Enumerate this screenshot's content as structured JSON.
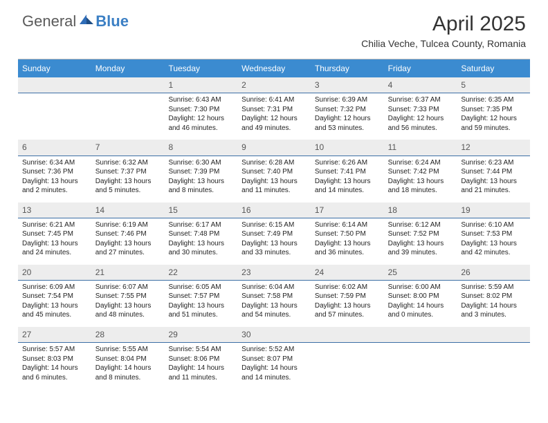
{
  "logo": {
    "general": "General",
    "blue": "Blue"
  },
  "title": "April 2025",
  "subtitle": "Chilia Veche, Tulcea County, Romania",
  "colors": {
    "header_bg": "#3b8bd0",
    "header_text": "#ffffff",
    "daynum_bg": "#ededed",
    "daynum_border": "#3b6ea5",
    "brand_blue": "#3b7fc4"
  },
  "days": [
    "Sunday",
    "Monday",
    "Tuesday",
    "Wednesday",
    "Thursday",
    "Friday",
    "Saturday"
  ],
  "weeks": [
    [
      null,
      null,
      {
        "n": "1",
        "sr": "Sunrise: 6:43 AM",
        "ss": "Sunset: 7:30 PM",
        "dl": "Daylight: 12 hours and 46 minutes."
      },
      {
        "n": "2",
        "sr": "Sunrise: 6:41 AM",
        "ss": "Sunset: 7:31 PM",
        "dl": "Daylight: 12 hours and 49 minutes."
      },
      {
        "n": "3",
        "sr": "Sunrise: 6:39 AM",
        "ss": "Sunset: 7:32 PM",
        "dl": "Daylight: 12 hours and 53 minutes."
      },
      {
        "n": "4",
        "sr": "Sunrise: 6:37 AM",
        "ss": "Sunset: 7:33 PM",
        "dl": "Daylight: 12 hours and 56 minutes."
      },
      {
        "n": "5",
        "sr": "Sunrise: 6:35 AM",
        "ss": "Sunset: 7:35 PM",
        "dl": "Daylight: 12 hours and 59 minutes."
      }
    ],
    [
      {
        "n": "6",
        "sr": "Sunrise: 6:34 AM",
        "ss": "Sunset: 7:36 PM",
        "dl": "Daylight: 13 hours and 2 minutes."
      },
      {
        "n": "7",
        "sr": "Sunrise: 6:32 AM",
        "ss": "Sunset: 7:37 PM",
        "dl": "Daylight: 13 hours and 5 minutes."
      },
      {
        "n": "8",
        "sr": "Sunrise: 6:30 AM",
        "ss": "Sunset: 7:39 PM",
        "dl": "Daylight: 13 hours and 8 minutes."
      },
      {
        "n": "9",
        "sr": "Sunrise: 6:28 AM",
        "ss": "Sunset: 7:40 PM",
        "dl": "Daylight: 13 hours and 11 minutes."
      },
      {
        "n": "10",
        "sr": "Sunrise: 6:26 AM",
        "ss": "Sunset: 7:41 PM",
        "dl": "Daylight: 13 hours and 14 minutes."
      },
      {
        "n": "11",
        "sr": "Sunrise: 6:24 AM",
        "ss": "Sunset: 7:42 PM",
        "dl": "Daylight: 13 hours and 18 minutes."
      },
      {
        "n": "12",
        "sr": "Sunrise: 6:23 AM",
        "ss": "Sunset: 7:44 PM",
        "dl": "Daylight: 13 hours and 21 minutes."
      }
    ],
    [
      {
        "n": "13",
        "sr": "Sunrise: 6:21 AM",
        "ss": "Sunset: 7:45 PM",
        "dl": "Daylight: 13 hours and 24 minutes."
      },
      {
        "n": "14",
        "sr": "Sunrise: 6:19 AM",
        "ss": "Sunset: 7:46 PM",
        "dl": "Daylight: 13 hours and 27 minutes."
      },
      {
        "n": "15",
        "sr": "Sunrise: 6:17 AM",
        "ss": "Sunset: 7:48 PM",
        "dl": "Daylight: 13 hours and 30 minutes."
      },
      {
        "n": "16",
        "sr": "Sunrise: 6:15 AM",
        "ss": "Sunset: 7:49 PM",
        "dl": "Daylight: 13 hours and 33 minutes."
      },
      {
        "n": "17",
        "sr": "Sunrise: 6:14 AM",
        "ss": "Sunset: 7:50 PM",
        "dl": "Daylight: 13 hours and 36 minutes."
      },
      {
        "n": "18",
        "sr": "Sunrise: 6:12 AM",
        "ss": "Sunset: 7:52 PM",
        "dl": "Daylight: 13 hours and 39 minutes."
      },
      {
        "n": "19",
        "sr": "Sunrise: 6:10 AM",
        "ss": "Sunset: 7:53 PM",
        "dl": "Daylight: 13 hours and 42 minutes."
      }
    ],
    [
      {
        "n": "20",
        "sr": "Sunrise: 6:09 AM",
        "ss": "Sunset: 7:54 PM",
        "dl": "Daylight: 13 hours and 45 minutes."
      },
      {
        "n": "21",
        "sr": "Sunrise: 6:07 AM",
        "ss": "Sunset: 7:55 PM",
        "dl": "Daylight: 13 hours and 48 minutes."
      },
      {
        "n": "22",
        "sr": "Sunrise: 6:05 AM",
        "ss": "Sunset: 7:57 PM",
        "dl": "Daylight: 13 hours and 51 minutes."
      },
      {
        "n": "23",
        "sr": "Sunrise: 6:04 AM",
        "ss": "Sunset: 7:58 PM",
        "dl": "Daylight: 13 hours and 54 minutes."
      },
      {
        "n": "24",
        "sr": "Sunrise: 6:02 AM",
        "ss": "Sunset: 7:59 PM",
        "dl": "Daylight: 13 hours and 57 minutes."
      },
      {
        "n": "25",
        "sr": "Sunrise: 6:00 AM",
        "ss": "Sunset: 8:00 PM",
        "dl": "Daylight: 14 hours and 0 minutes."
      },
      {
        "n": "26",
        "sr": "Sunrise: 5:59 AM",
        "ss": "Sunset: 8:02 PM",
        "dl": "Daylight: 14 hours and 3 minutes."
      }
    ],
    [
      {
        "n": "27",
        "sr": "Sunrise: 5:57 AM",
        "ss": "Sunset: 8:03 PM",
        "dl": "Daylight: 14 hours and 6 minutes."
      },
      {
        "n": "28",
        "sr": "Sunrise: 5:55 AM",
        "ss": "Sunset: 8:04 PM",
        "dl": "Daylight: 14 hours and 8 minutes."
      },
      {
        "n": "29",
        "sr": "Sunrise: 5:54 AM",
        "ss": "Sunset: 8:06 PM",
        "dl": "Daylight: 14 hours and 11 minutes."
      },
      {
        "n": "30",
        "sr": "Sunrise: 5:52 AM",
        "ss": "Sunset: 8:07 PM",
        "dl": "Daylight: 14 hours and 14 minutes."
      },
      null,
      null,
      null
    ]
  ]
}
